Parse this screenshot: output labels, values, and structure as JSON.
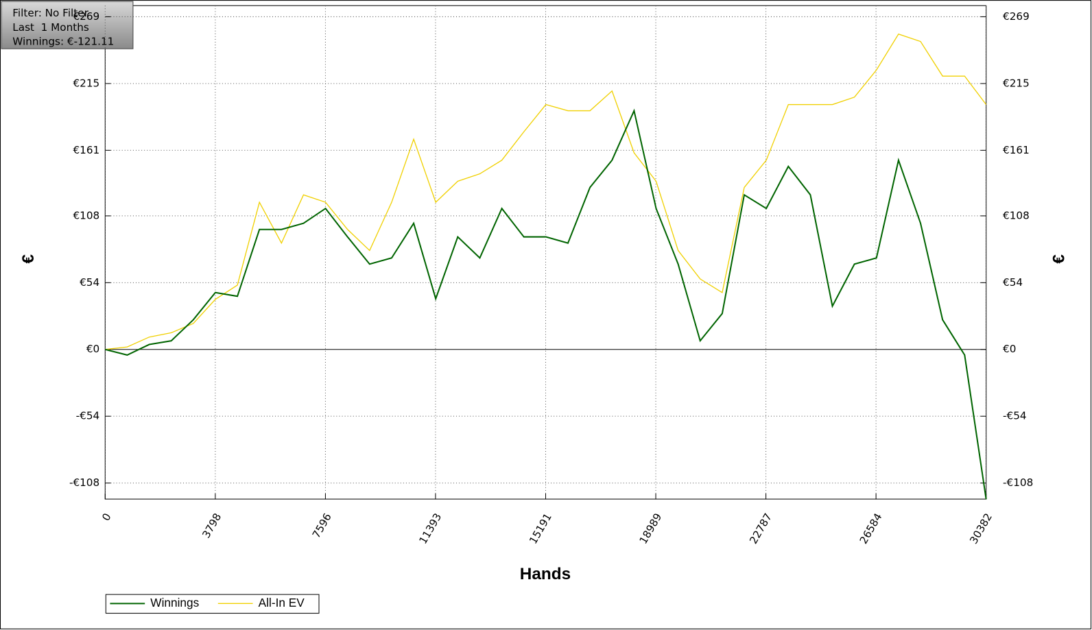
{
  "info_box": {
    "filter": "Filter: No Filter",
    "period": "Last  1 Months",
    "winnings": "Winnings: €-121.11"
  },
  "chart_data": {
    "type": "line",
    "xlabel": "Hands",
    "ylabel": "€",
    "y2label": "€",
    "x": [
      0,
      760,
      1520,
      2280,
      3040,
      3800,
      4560,
      5320,
      6080,
      6840,
      7600,
      8360,
      9120,
      9880,
      10640,
      11400,
      12160,
      12920,
      13680,
      14440,
      15200,
      15960,
      16720,
      17480,
      18240,
      19000,
      19760,
      20520,
      21280,
      22040,
      22800,
      23560,
      24320,
      25080,
      25840,
      26600,
      27360,
      28120,
      28880,
      29640,
      30382
    ],
    "series": [
      {
        "name": "Winnings",
        "color": "#006400",
        "values": [
          0,
          -4.5,
          4,
          7,
          24,
          46,
          43,
          97,
          97,
          102,
          114,
          91,
          69,
          74,
          102,
          41,
          91,
          74,
          114,
          91,
          91,
          86,
          131,
          153,
          193,
          114,
          69,
          7,
          29,
          125,
          114,
          148,
          125,
          35,
          69,
          74,
          153,
          102,
          24,
          -4.5,
          -121.11
        ]
      },
      {
        "name": "All-In EV",
        "color": "#f0d000",
        "values": [
          0,
          2,
          10,
          13.5,
          21,
          40.5,
          52,
          119,
          86,
          125,
          119,
          97,
          80,
          119,
          170,
          119,
          136,
          142,
          153,
          176,
          198,
          193,
          193,
          209,
          159,
          136,
          80,
          57,
          46,
          131,
          153,
          198,
          198,
          198,
          204,
          226,
          255,
          249,
          221,
          221,
          198
        ]
      }
    ],
    "xlim": [
      0,
      30382
    ],
    "xticks": [
      0,
      3798,
      7596,
      11393,
      15191,
      18989,
      22787,
      26584,
      30382
    ],
    "ylim": [
      -121,
      278
    ],
    "yticks": [
      {
        "value": -108,
        "label": "-€108"
      },
      {
        "value": -54,
        "label": "-€54"
      },
      {
        "value": 0,
        "label": "€0"
      },
      {
        "value": 54,
        "label": "€54"
      },
      {
        "value": 108,
        "label": "€108"
      },
      {
        "value": 161,
        "label": "€161"
      },
      {
        "value": 215,
        "label": "€215"
      },
      {
        "value": 269,
        "label": "€269"
      }
    ],
    "grid": true,
    "legend": "bottom-left"
  }
}
